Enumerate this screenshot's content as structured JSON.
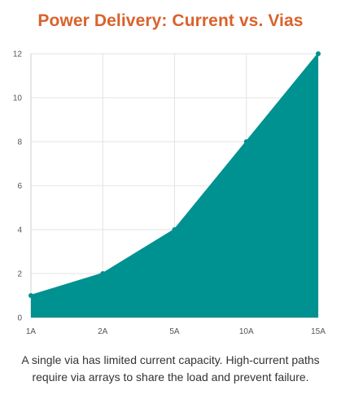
{
  "chart_data": {
    "type": "area",
    "title": "Power Delivery: Current vs. Vias",
    "xlabel": "",
    "ylabel": "",
    "categories": [
      "1A",
      "2A",
      "5A",
      "10A",
      "15A"
    ],
    "series": [
      {
        "values": [
          1,
          2,
          4,
          8,
          12
        ]
      }
    ],
    "ylim": [
      0,
      12
    ],
    "yticks": [
      0,
      2,
      4,
      6,
      8,
      10,
      12
    ],
    "grid": true,
    "legend": "none"
  },
  "caption": "A single via has limited current capacity. High-current paths require via arrays to share the load and prevent failure.",
  "colors": {
    "title": "#d9622b",
    "area_fill": "#009191",
    "grid": "#e3e3e3",
    "tick_text": "#555555"
  }
}
